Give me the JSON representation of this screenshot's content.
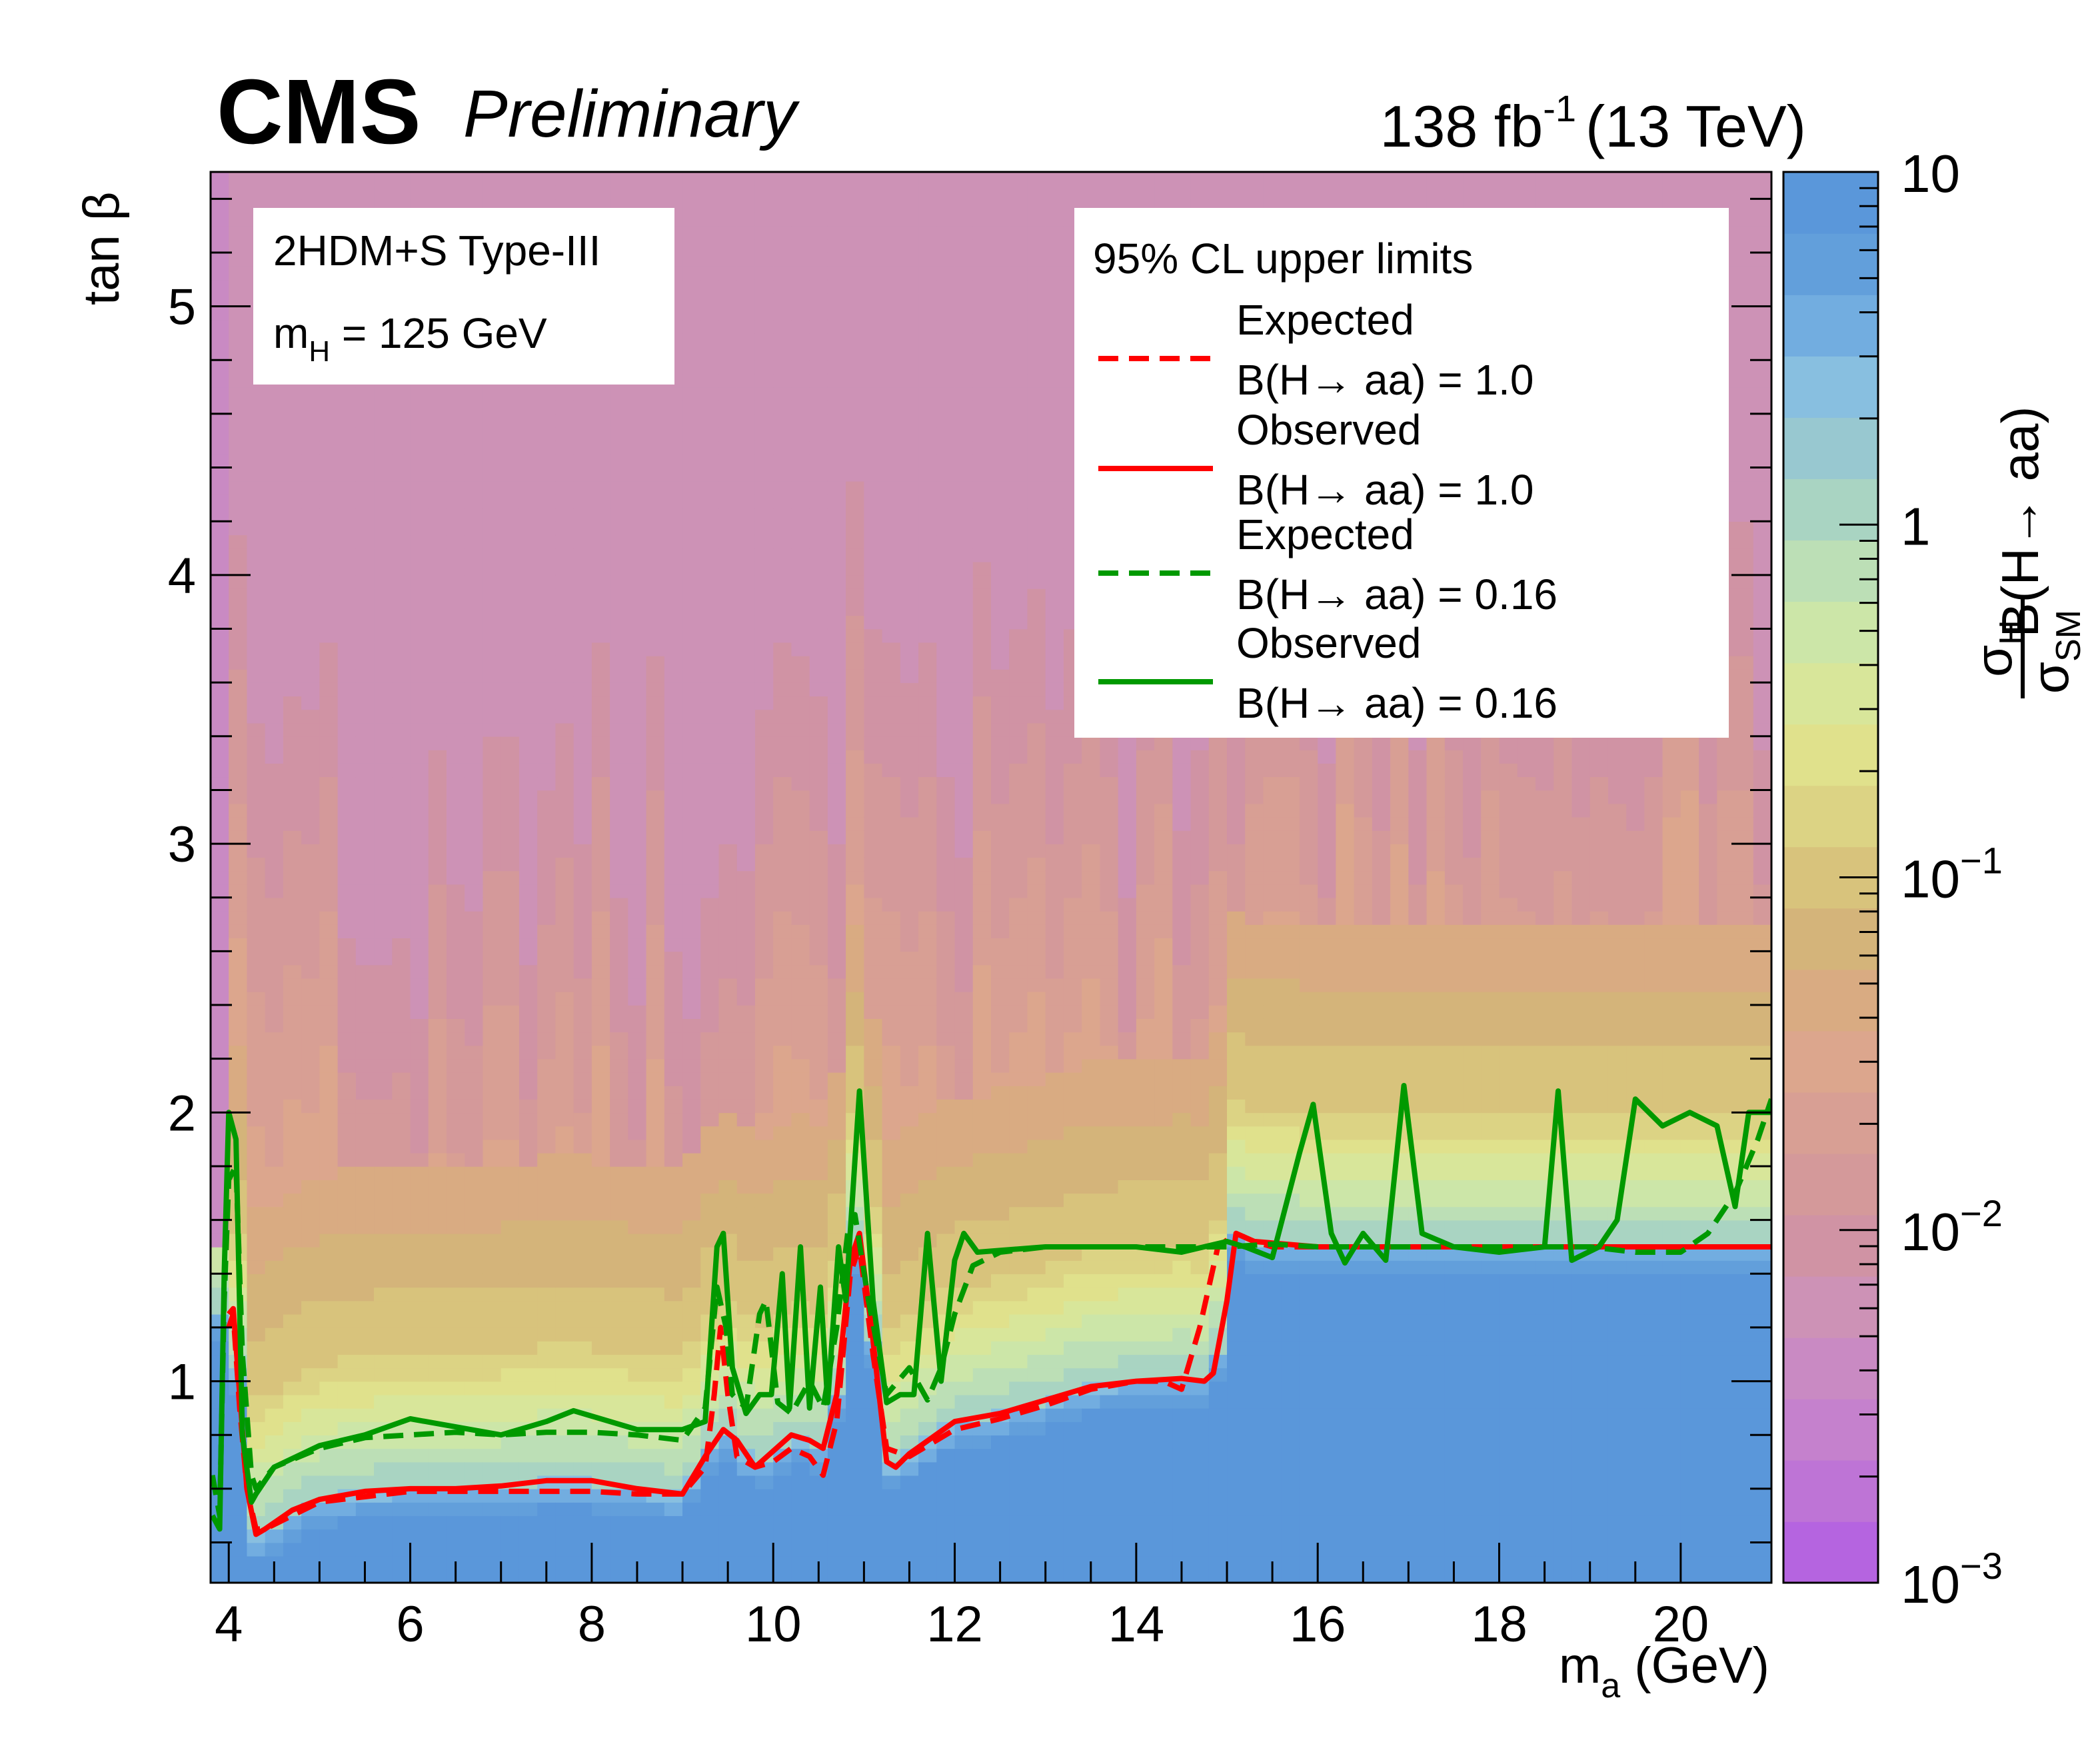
{
  "header": {
    "experiment": "CMS",
    "status": "Preliminary",
    "lumi_value": "138 fb",
    "lumi_exponent": "-1",
    "energy": "(13 TeV)"
  },
  "model_box": {
    "line1": "2HDM+S Type-III",
    "line2_main": "m",
    "line2_sub": "H",
    "line2_rest": " = 125 GeV"
  },
  "legend": {
    "title": "95% CL upper limits",
    "entries": [
      {
        "line1": "Expected",
        "line2": "B(H→ aa) = 1.0",
        "color": "#ff0000",
        "dashed": true
      },
      {
        "line1": "Observed",
        "line2": "B(H→ aa) = 1.0",
        "color": "#ff0000",
        "dashed": false
      },
      {
        "line1": "Expected",
        "line2": "B(H→ aa) = 0.16",
        "color": "#009900",
        "dashed": true
      },
      {
        "line1": "Observed",
        "line2": "B(H→ aa) = 0.16",
        "color": "#009900",
        "dashed": false
      }
    ]
  },
  "chart_data": {
    "type": "heatmap",
    "xlabel_main": "m",
    "xlabel_sub": "a",
    "xlabel_rest": " (GeV)",
    "ylabel": "tan β",
    "xlim": [
      3.8,
      21.0
    ],
    "ylim": [
      0.25,
      5.5
    ],
    "x_ticks": [
      "4",
      "6",
      "8",
      "10",
      "12",
      "14",
      "16",
      "18",
      "20"
    ],
    "y_ticks": [
      "1",
      "2",
      "3",
      "4",
      "5"
    ],
    "z_label": {
      "num": "σ",
      "num_sub": "H",
      "den": "σ",
      "den_sub": "SM",
      "factor": "B(H→ aa)"
    },
    "z_scale": "log",
    "z_range": [
      0.001,
      10
    ],
    "z_ticks": [
      {
        "base": "10",
        "exp": "",
        "value": 10
      },
      {
        "base": "1",
        "exp": "",
        "value": 1
      },
      {
        "base": "10",
        "exp": "−1",
        "value": 0.1
      },
      {
        "base": "10",
        "exp": "−2",
        "value": 0.01
      },
      {
        "base": "10",
        "exp": "−3",
        "value": 0.001
      }
    ],
    "palette": [
      "#b564e0",
      "#be74d6",
      "#c581cd",
      "#c98ac3",
      "#cd92b6",
      "#d093a4",
      "#d4999a",
      "#d89f94",
      "#dca68d",
      "#d9ab82",
      "#d4b47a",
      "#d8c37c",
      "#dcd384",
      "#e0e18c",
      "#d8e69a",
      "#cce6a8",
      "#bcdfb6",
      "#a9d4c2",
      "#98c8d0",
      "#88bfe0",
      "#72ade0",
      "#629fdb",
      "#5a97da"
    ],
    "series": [
      {
        "name": "Expected B(H→ aa) = 1.0",
        "color": "#ff0000",
        "dashed": true,
        "points": [
          [
            4.0,
            1.2
          ],
          [
            4.05,
            1.25
          ],
          [
            4.12,
            0.9
          ],
          [
            4.2,
            0.6
          ],
          [
            4.3,
            0.45
          ],
          [
            4.4,
            0.45
          ],
          [
            4.7,
            0.5
          ],
          [
            5.0,
            0.55
          ],
          [
            5.5,
            0.57
          ],
          [
            6.0,
            0.59
          ],
          [
            6.5,
            0.59
          ],
          [
            7.0,
            0.59
          ],
          [
            7.5,
            0.59
          ],
          [
            8.0,
            0.59
          ],
          [
            8.5,
            0.58
          ],
          [
            9.0,
            0.58
          ],
          [
            9.25,
            0.68
          ],
          [
            9.35,
            0.95
          ],
          [
            9.42,
            1.2
          ],
          [
            9.5,
            0.95
          ],
          [
            9.6,
            0.72
          ],
          [
            9.8,
            0.68
          ],
          [
            10.0,
            0.7
          ],
          [
            10.2,
            0.75
          ],
          [
            10.4,
            0.72
          ],
          [
            10.55,
            0.65
          ],
          [
            10.7,
            0.85
          ],
          [
            10.85,
            1.4
          ],
          [
            10.95,
            1.5
          ],
          [
            11.1,
            1.1
          ],
          [
            11.25,
            0.75
          ],
          [
            11.5,
            0.72
          ],
          [
            12.0,
            0.82
          ],
          [
            12.5,
            0.86
          ],
          [
            13.0,
            0.91
          ],
          [
            13.5,
            0.97
          ],
          [
            14.0,
            1.0
          ],
          [
            14.3,
            1.0
          ],
          [
            14.5,
            0.97
          ],
          [
            14.7,
            1.2
          ],
          [
            14.9,
            1.5
          ],
          [
            15.1,
            1.55
          ],
          [
            15.3,
            1.52
          ],
          [
            15.5,
            1.5
          ],
          [
            16.0,
            1.5
          ],
          [
            17.0,
            1.5
          ],
          [
            18.0,
            1.5
          ],
          [
            19.0,
            1.5
          ],
          [
            20.0,
            1.5
          ],
          [
            21.0,
            1.5
          ]
        ]
      },
      {
        "name": "Observed B(H→ aa) = 1.0",
        "color": "#ff0000",
        "dashed": false,
        "points": [
          [
            4.0,
            1.25
          ],
          [
            4.05,
            1.27
          ],
          [
            4.12,
            0.95
          ],
          [
            4.2,
            0.6
          ],
          [
            4.3,
            0.43
          ],
          [
            4.4,
            0.45
          ],
          [
            4.7,
            0.52
          ],
          [
            5.0,
            0.56
          ],
          [
            5.5,
            0.59
          ],
          [
            6.0,
            0.6
          ],
          [
            6.5,
            0.6
          ],
          [
            7.0,
            0.61
          ],
          [
            7.5,
            0.63
          ],
          [
            8.0,
            0.63
          ],
          [
            8.5,
            0.6
          ],
          [
            9.0,
            0.58
          ],
          [
            9.25,
            0.72
          ],
          [
            9.45,
            0.82
          ],
          [
            9.6,
            0.78
          ],
          [
            9.8,
            0.68
          ],
          [
            10.0,
            0.74
          ],
          [
            10.2,
            0.8
          ],
          [
            10.4,
            0.78
          ],
          [
            10.55,
            0.75
          ],
          [
            10.7,
            0.95
          ],
          [
            10.85,
            1.45
          ],
          [
            10.95,
            1.55
          ],
          [
            11.1,
            1.15
          ],
          [
            11.25,
            0.7
          ],
          [
            11.35,
            0.68
          ],
          [
            11.5,
            0.73
          ],
          [
            12.0,
            0.85
          ],
          [
            12.5,
            0.88
          ],
          [
            13.0,
            0.93
          ],
          [
            13.5,
            0.98
          ],
          [
            14.0,
            1.0
          ],
          [
            14.5,
            1.01
          ],
          [
            14.75,
            1.0
          ],
          [
            14.85,
            1.03
          ],
          [
            15.0,
            1.3
          ],
          [
            15.1,
            1.55
          ],
          [
            15.3,
            1.52
          ],
          [
            16.0,
            1.5
          ],
          [
            17.0,
            1.5
          ],
          [
            18.0,
            1.5
          ],
          [
            19.0,
            1.5
          ],
          [
            20.0,
            1.5
          ],
          [
            21.0,
            1.5
          ]
        ]
      },
      {
        "name": "Expected B(H→ aa) = 0.16",
        "color": "#009900",
        "dashed": true,
        "points": [
          [
            3.82,
            0.65
          ],
          [
            3.9,
            0.5
          ],
          [
            3.95,
            1.3
          ],
          [
            4.0,
            1.75
          ],
          [
            4.08,
            1.8
          ],
          [
            4.15,
            1.1
          ],
          [
            4.25,
            0.65
          ],
          [
            4.3,
            0.6
          ],
          [
            4.5,
            0.68
          ],
          [
            5.0,
            0.75
          ],
          [
            5.5,
            0.79
          ],
          [
            6.0,
            0.8
          ],
          [
            6.5,
            0.81
          ],
          [
            7.0,
            0.8
          ],
          [
            7.5,
            0.81
          ],
          [
            8.0,
            0.81
          ],
          [
            8.5,
            0.8
          ],
          [
            9.0,
            0.78
          ],
          [
            9.25,
            0.9
          ],
          [
            9.38,
            1.35
          ],
          [
            9.48,
            1.2
          ],
          [
            9.55,
            0.95
          ],
          [
            9.7,
            0.9
          ],
          [
            9.85,
            1.25
          ],
          [
            9.92,
            1.3
          ],
          [
            10.05,
            0.92
          ],
          [
            10.2,
            0.88
          ],
          [
            10.4,
            1.0
          ],
          [
            10.55,
            0.9
          ],
          [
            10.7,
            1.2
          ],
          [
            10.82,
            1.55
          ],
          [
            10.9,
            1.62
          ],
          [
            11.05,
            1.3
          ],
          [
            11.25,
            0.95
          ],
          [
            11.5,
            1.05
          ],
          [
            11.7,
            0.93
          ],
          [
            11.85,
            1.05
          ],
          [
            12.0,
            1.25
          ],
          [
            12.2,
            1.43
          ],
          [
            12.5,
            1.48
          ],
          [
            13.0,
            1.5
          ],
          [
            13.5,
            1.5
          ],
          [
            14.0,
            1.5
          ],
          [
            14.5,
            1.5
          ],
          [
            15.0,
            1.5
          ],
          [
            15.5,
            1.51
          ],
          [
            16.0,
            1.5
          ],
          [
            17.0,
            1.5
          ],
          [
            18.0,
            1.5
          ],
          [
            19.0,
            1.5
          ],
          [
            19.5,
            1.48
          ],
          [
            20.0,
            1.48
          ],
          [
            20.3,
            1.55
          ],
          [
            20.6,
            1.7
          ],
          [
            20.85,
            1.9
          ],
          [
            21.0,
            2.05
          ]
        ]
      },
      {
        "name": "Observed B(H→ aa) = 0.16",
        "color": "#009900",
        "dashed": false,
        "points": [
          [
            3.82,
            0.5
          ],
          [
            3.9,
            0.45
          ],
          [
            3.95,
            1.4
          ],
          [
            4.0,
            2.0
          ],
          [
            4.08,
            1.9
          ],
          [
            4.15,
            0.8
          ],
          [
            4.25,
            0.55
          ],
          [
            4.3,
            0.58
          ],
          [
            4.5,
            0.68
          ],
          [
            5.0,
            0.76
          ],
          [
            5.5,
            0.8
          ],
          [
            6.0,
            0.86
          ],
          [
            6.5,
            0.83
          ],
          [
            7.0,
            0.8
          ],
          [
            7.5,
            0.85
          ],
          [
            7.8,
            0.89
          ],
          [
            8.0,
            0.87
          ],
          [
            8.5,
            0.82
          ],
          [
            9.0,
            0.82
          ],
          [
            9.25,
            0.85
          ],
          [
            9.38,
            1.5
          ],
          [
            9.45,
            1.55
          ],
          [
            9.55,
            1.05
          ],
          [
            9.7,
            0.88
          ],
          [
            9.85,
            0.95
          ],
          [
            9.98,
            0.95
          ],
          [
            10.1,
            1.4
          ],
          [
            10.18,
            0.9
          ],
          [
            10.3,
            1.5
          ],
          [
            10.4,
            0.9
          ],
          [
            10.52,
            1.35
          ],
          [
            10.6,
            0.92
          ],
          [
            10.72,
            1.5
          ],
          [
            10.8,
            1.3
          ],
          [
            10.95,
            2.08
          ],
          [
            11.1,
            1.3
          ],
          [
            11.25,
            0.92
          ],
          [
            11.4,
            0.95
          ],
          [
            11.55,
            0.95
          ],
          [
            11.7,
            1.55
          ],
          [
            11.85,
            1.0
          ],
          [
            12.0,
            1.45
          ],
          [
            12.1,
            1.55
          ],
          [
            12.25,
            1.48
          ],
          [
            13.0,
            1.5
          ],
          [
            14.0,
            1.5
          ],
          [
            14.5,
            1.48
          ],
          [
            15.0,
            1.52
          ],
          [
            15.2,
            1.5
          ],
          [
            15.5,
            1.46
          ],
          [
            15.8,
            1.85
          ],
          [
            15.95,
            2.03
          ],
          [
            16.15,
            1.55
          ],
          [
            16.3,
            1.44
          ],
          [
            16.5,
            1.55
          ],
          [
            16.75,
            1.45
          ],
          [
            16.95,
            2.1
          ],
          [
            17.15,
            1.55
          ],
          [
            17.5,
            1.5
          ],
          [
            18.0,
            1.48
          ],
          [
            18.5,
            1.5
          ],
          [
            18.65,
            2.08
          ],
          [
            18.8,
            1.45
          ],
          [
            19.1,
            1.5
          ],
          [
            19.3,
            1.6
          ],
          [
            19.5,
            2.05
          ],
          [
            19.8,
            1.95
          ],
          [
            20.1,
            2.0
          ],
          [
            20.4,
            1.95
          ],
          [
            20.6,
            1.65
          ],
          [
            20.75,
            2.0
          ],
          [
            21.0,
            2.0
          ]
        ]
      }
    ]
  }
}
